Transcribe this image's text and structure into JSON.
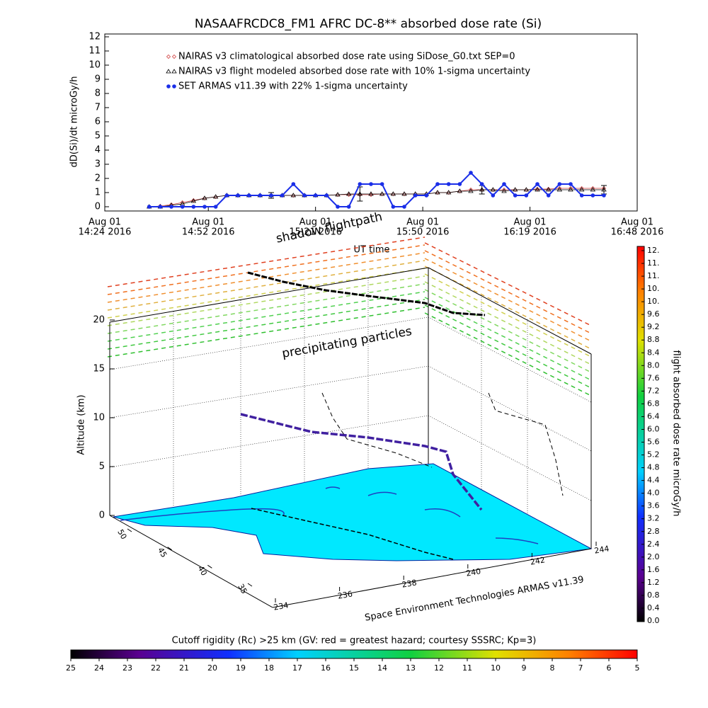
{
  "chart_data": [
    {
      "type": "line",
      "title": "NASAAFRCDC8_FM1 AFRC DC-8** absorbed dose rate (Si)",
      "y_label": "dD(Si)/dt microGy/h",
      "x_label": "UT time",
      "xlim": [
        "2016-08-01T14:24",
        "2016-08-01T16:48"
      ],
      "xticks": [
        {
          "value": "2016-08-01T14:24",
          "label": [
            "Aug 01",
            "14:24 2016"
          ]
        },
        {
          "value": "2016-08-01T14:52",
          "label": [
            "Aug 01",
            "14:52 2016"
          ]
        },
        {
          "value": "2016-08-01T15:21",
          "label": [
            "Aug 01",
            "15:21 2016"
          ]
        },
        {
          "value": "2016-08-01T15:50",
          "label": [
            "Aug 01",
            "15:50 2016"
          ]
        },
        {
          "value": "2016-08-01T16:19",
          "label": [
            "Aug 01",
            "16:19 2016"
          ]
        },
        {
          "value": "2016-08-01T16:48",
          "label": [
            "Aug 01",
            "16:48 2016"
          ]
        }
      ],
      "ylim": [
        -0.3,
        12.2
      ],
      "yticks": [
        0,
        1,
        2,
        3,
        4,
        5,
        6,
        7,
        8,
        9,
        10,
        11,
        12
      ],
      "x": [
        "2016-08-01T14:36",
        "2016-08-01T14:39",
        "2016-08-01T14:42",
        "2016-08-01T14:45",
        "2016-08-01T14:48",
        "2016-08-01T14:51",
        "2016-08-01T14:54",
        "2016-08-01T14:57",
        "2016-08-01T15:00",
        "2016-08-01T15:03",
        "2016-08-01T15:06",
        "2016-08-01T15:09",
        "2016-08-01T15:12",
        "2016-08-01T15:15",
        "2016-08-01T15:18",
        "2016-08-01T15:21",
        "2016-08-01T15:24",
        "2016-08-01T15:27",
        "2016-08-01T15:30",
        "2016-08-01T15:33",
        "2016-08-01T15:36",
        "2016-08-01T15:39",
        "2016-08-01T15:42",
        "2016-08-01T15:45",
        "2016-08-01T15:48",
        "2016-08-01T15:51",
        "2016-08-01T15:54",
        "2016-08-01T15:57",
        "2016-08-01T16:00",
        "2016-08-01T16:03",
        "2016-08-01T16:06",
        "2016-08-01T16:09",
        "2016-08-01T16:12",
        "2016-08-01T16:15",
        "2016-08-01T16:18",
        "2016-08-01T16:21",
        "2016-08-01T16:24",
        "2016-08-01T16:27",
        "2016-08-01T16:30",
        "2016-08-01T16:33",
        "2016-08-01T16:36",
        "2016-08-01T16:39"
      ],
      "series": [
        {
          "name": "NAIRAS v3 climatological absorbed dose rate using SiDose_G0.txt SEP=0",
          "color": "#d04040",
          "marker": "diamond",
          "values": [
            0,
            0.05,
            0.15,
            0.3,
            0.45,
            0.6,
            0.7,
            0.8,
            0.8,
            0.8,
            0.8,
            0.8,
            0.8,
            0.8,
            0.8,
            0.8,
            0.8,
            0.85,
            0.85,
            0.85,
            0.85,
            0.9,
            0.9,
            0.9,
            0.9,
            0.9,
            1.0,
            1.0,
            1.1,
            1.2,
            1.2,
            1.2,
            1.2,
            1.2,
            1.2,
            1.25,
            1.25,
            1.3,
            1.3,
            1.3,
            1.3,
            1.3
          ]
        },
        {
          "name": "NAIRAS v3 flight modeled absorbed dose rate with 10% 1-sigma uncertainty",
          "color": "#000000",
          "marker": "triangle",
          "values": [
            0,
            0,
            0.1,
            0.2,
            0.4,
            0.6,
            0.7,
            0.8,
            0.8,
            0.8,
            0.8,
            0.8,
            0.8,
            0.8,
            0.8,
            0.8,
            0.8,
            0.85,
            0.9,
            0.9,
            0.9,
            0.9,
            0.9,
            0.9,
            0.9,
            0.9,
            1.0,
            1.0,
            1.1,
            1.1,
            1.2,
            1.2,
            1.1,
            1.2,
            1.2,
            1.2,
            1.2,
            1.2,
            1.2,
            1.2,
            1.2,
            1.2
          ],
          "errors": [
            null,
            null,
            null,
            null,
            null,
            null,
            null,
            null,
            null,
            null,
            null,
            0.2,
            null,
            null,
            null,
            null,
            null,
            null,
            null,
            0.5,
            null,
            null,
            null,
            null,
            null,
            null,
            null,
            null,
            null,
            null,
            0.3,
            null,
            null,
            null,
            null,
            null,
            null,
            null,
            null,
            null,
            null,
            0.3
          ]
        },
        {
          "name": "SET ARMAS v11.39 with 22% 1-sigma uncertainty",
          "color": "#1a2ee8",
          "marker": "circle",
          "values": [
            0,
            0,
            0,
            0,
            0,
            0,
            0,
            0.8,
            0.8,
            0.8,
            0.8,
            0.8,
            0.8,
            1.6,
            0.8,
            0.8,
            0.8,
            0,
            0,
            1.6,
            1.6,
            1.6,
            0,
            0,
            0.8,
            0.8,
            1.6,
            1.6,
            1.6,
            2.4,
            1.6,
            0.8,
            1.6,
            0.8,
            0.8,
            1.6,
            0.8,
            1.6,
            1.6,
            0.8,
            0.8,
            0.8
          ]
        }
      ]
    },
    {
      "type": "surface3d",
      "annotations": [
        "shadow flightpath",
        "precipitating particles"
      ],
      "z_label": "Altitude (km)",
      "credit": "Space Environment Technologies ARMAS v11.39",
      "zticks": [
        0,
        5,
        10,
        15,
        20
      ],
      "lat_ticks": [
        35,
        40,
        45,
        50
      ],
      "lon_ticks": [
        234,
        236,
        238,
        240,
        242,
        244
      ],
      "colorbar": {
        "label": "flight absorbed dose rate microGy/h",
        "lim": [
          0,
          11.6
        ],
        "ticks": [
          {
            "value": 0,
            "label": "0.0"
          },
          0.4,
          0.8,
          1.2,
          1.6,
          {
            "value": 2,
            "label": "2.0"
          },
          2.4,
          2.8,
          3.2,
          3.6,
          {
            "value": 4,
            "label": "4.0"
          },
          4.4,
          4.8,
          5.2,
          5.6,
          {
            "value": 6,
            "label": "6.0"
          },
          6.4,
          6.8,
          7.2,
          7.6,
          {
            "value": 8,
            "label": "8.0"
          },
          8.4,
          8.8,
          9.2,
          9.6,
          {
            "value": 10,
            "label": "10."
          },
          {
            "value": 10.4,
            "label": "10."
          },
          {
            "value": 10.8,
            "label": "11."
          },
          {
            "value": 11.2,
            "label": "11."
          },
          {
            "value": 11.6,
            "label": "12."
          }
        ]
      },
      "rigidity_bar": {
        "title": "Cutoff rigidity (Rc) >25 km (GV: red = greatest hazard; courtesy SSSRC; Kp=3)",
        "lim": [
          25,
          5
        ],
        "ticks": [
          25,
          24,
          23,
          22,
          21,
          20,
          19,
          18,
          17,
          16,
          15,
          14,
          13,
          12,
          11,
          10,
          9,
          8,
          7,
          6,
          5
        ]
      }
    }
  ]
}
